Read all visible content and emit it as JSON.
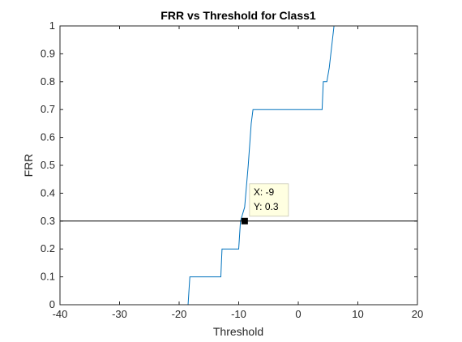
{
  "chart_data": {
    "type": "line",
    "title": "FRR vs  Threshold for Class1",
    "xlabel": "Threshold",
    "ylabel": "FRR",
    "xlim": [
      -40,
      20
    ],
    "ylim": [
      0,
      1
    ],
    "xticks": [
      -40,
      -30,
      -20,
      -10,
      0,
      10,
      20
    ],
    "yticks": [
      0,
      0.1,
      0.2,
      0.3,
      0.4,
      0.5,
      0.6,
      0.7,
      0.8,
      0.9,
      1
    ],
    "xtick_labels": [
      "-40",
      "-30",
      "-20",
      "-10",
      "0",
      "10",
      "20"
    ],
    "ytick_labels": [
      "0",
      "0.1",
      "0.2",
      "0.3",
      "0.4",
      "0.5",
      "0.6",
      "0.7",
      "0.8",
      "0.9",
      "1"
    ],
    "grid": false,
    "box": true,
    "series": [
      {
        "color": "#0072bd",
        "x": [
          -40,
          -18.5,
          -18.2,
          -18.2,
          -13,
          -12.8,
          -12.8,
          -10,
          -9.7,
          -9,
          -8.4,
          -7.9,
          -7.6,
          -7.6,
          4,
          4.2,
          4.8,
          5.2,
          6,
          20
        ],
        "y": [
          0,
          0,
          0.1,
          0.1,
          0.1,
          0.2,
          0.2,
          0.2,
          0.3,
          0.35,
          0.5,
          0.65,
          0.7,
          0.7,
          0.7,
          0.8,
          0.8,
          0.85,
          1,
          1
        ]
      },
      {
        "color": "#000000",
        "x": [
          -40,
          20
        ],
        "y": [
          0.3,
          0.3
        ]
      }
    ],
    "datatip": {
      "x": -9,
      "y": 0.3,
      "x_text": "X: -9",
      "y_text": "Y: 0.3",
      "background": "#ffffe1"
    },
    "colors": {
      "axis": "#262626",
      "background": "#ffffff"
    }
  }
}
